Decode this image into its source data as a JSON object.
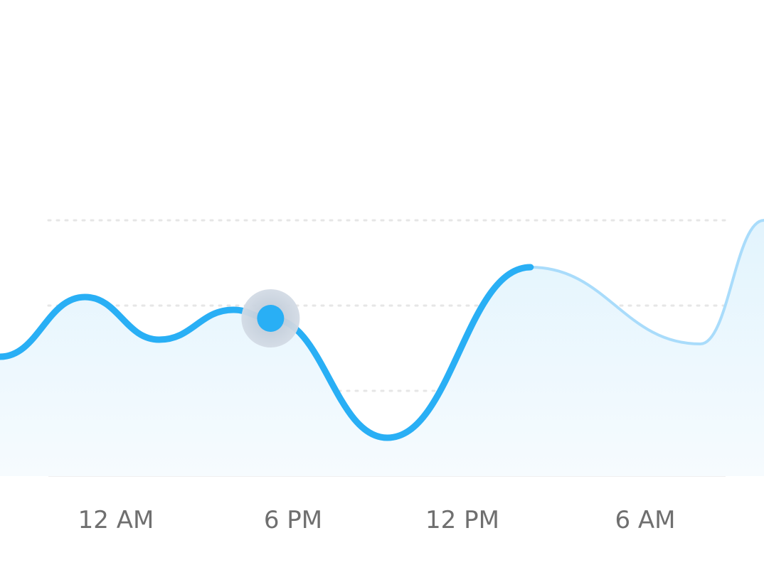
{
  "chart_data": {
    "type": "line",
    "xlabel": "",
    "ylabel": "",
    "title": "",
    "x_tick_labels": [
      "12 AM",
      "6 PM",
      "12 PM",
      "6 AM"
    ],
    "grid": true,
    "legend": "none",
    "series": [
      {
        "values": [
          {
            "x": 0.0,
            "y": 1.4
          },
          {
            "x": 0.8,
            "y": 2.1
          },
          {
            "x": 1.5,
            "y": 1.6
          },
          {
            "x": 2.2,
            "y": 1.95
          },
          {
            "x": 2.55,
            "y": 1.85
          },
          {
            "x": 3.65,
            "y": 0.45
          },
          {
            "x": 5.0,
            "y": 2.45
          },
          {
            "x": 6.6,
            "y": 1.55
          },
          {
            "x": 7.2,
            "y": 3.0
          }
        ],
        "highlighted_point_index": 4,
        "solid_until_index": 6
      }
    ],
    "ylim": [
      0,
      3
    ],
    "colors": {
      "line": "#29aff5",
      "line_faded": "#a9dcfb",
      "area_top": "#e2f4fd",
      "area_bottom": "#f6fbfe",
      "grid": "#e6e6e6",
      "marker_halo": "#c5cfdc",
      "marker_dot": "#29aff5"
    }
  }
}
